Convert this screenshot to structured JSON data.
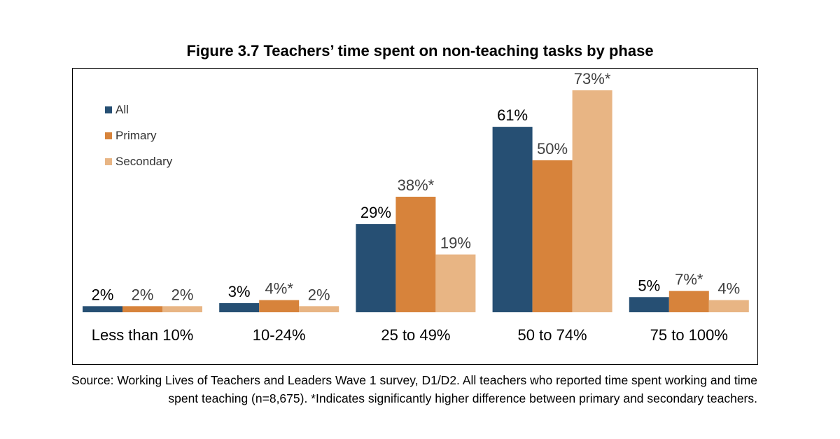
{
  "chart_data": {
    "type": "bar",
    "title": "Figure 3.7 Teachers’ time spent on non-teaching tasks by phase",
    "categories": [
      "Less than 10%",
      "10-24%",
      "25 to 49%",
      "50 to 74%",
      "75 to 100%"
    ],
    "series": [
      {
        "name": "All",
        "color": "#264f73",
        "values": [
          2,
          3,
          29,
          61,
          5
        ],
        "labels": [
          "2%",
          "3%",
          "29%",
          "61%",
          "5%"
        ]
      },
      {
        "name": "Primary",
        "color": "#d7833b",
        "values": [
          2,
          4,
          38,
          50,
          7
        ],
        "labels": [
          "2%",
          "4%*",
          "38%*",
          "50%",
          "7%*"
        ]
      },
      {
        "name": "Secondary",
        "color": "#e8b584",
        "values": [
          2,
          2,
          19,
          73,
          4
        ],
        "labels": [
          "2%",
          "2%",
          "19%",
          "73%*",
          "4%"
        ]
      }
    ],
    "ylim": [
      0,
      73
    ],
    "grid": false,
    "legend_position": "top-left"
  },
  "source_note": "Source: Working Lives of Teachers and Leaders Wave 1 survey, D1/D2. All teachers who reported time spent working and time spent teaching (n=8,675). *Indicates significantly higher difference between primary and secondary teachers."
}
